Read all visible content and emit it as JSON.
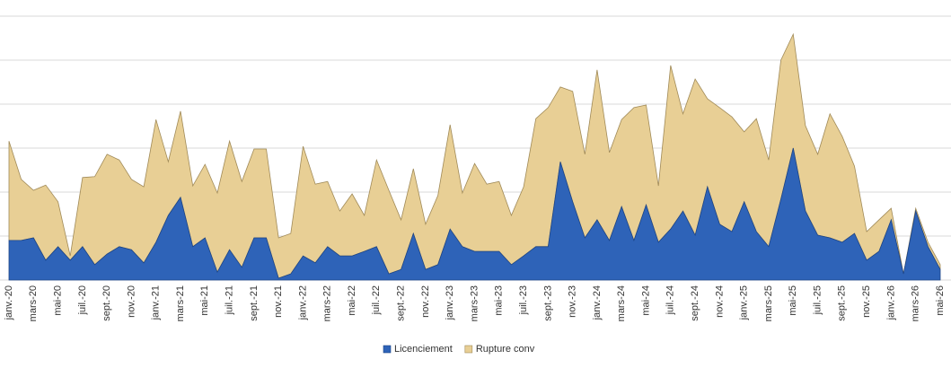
{
  "chart_data": {
    "type": "area_stacked",
    "categories": [
      "janv.-20",
      null,
      "mars-20",
      null,
      "mai-20",
      null,
      "juil.-20",
      null,
      "sept.-20",
      null,
      "nov.-20",
      null,
      "janv.-21",
      null,
      "mars-21",
      null,
      "mai-21",
      null,
      "juil.-21",
      null,
      "sept.-21",
      null,
      "nov.-21",
      null,
      "janv.-22",
      null,
      "mars-22",
      null,
      "mai-22",
      null,
      "juil.-22",
      null,
      "sept.-22",
      null,
      "nov.-22",
      null,
      "janv.-23",
      null,
      "mars-23",
      null,
      "mai-23",
      null,
      "juil.-23",
      null,
      "sept.-23",
      null,
      "nov.-23",
      null,
      "janv.-24",
      null,
      "mars-24",
      null,
      "mai-24",
      null,
      "juil.-24",
      null,
      "sept.-24",
      null,
      "nov.-24",
      null,
      "janv.-25",
      null,
      "mars-25",
      null,
      "mai-25",
      null,
      "juil.-25",
      null,
      "sept.-25",
      null,
      "nov.-25",
      null,
      "janv.-26",
      null,
      "mars-26",
      null,
      "mai-26"
    ],
    "series": [
      {
        "name": "Licenciement",
        "color": "#2e63b8",
        "values": [
          9.0,
          9.0,
          9.6,
          4.5,
          7.6,
          4.5,
          7.6,
          3.5,
          5.9,
          7.6,
          6.9,
          3.9,
          8.6,
          14.7,
          18.8,
          7.6,
          9.6,
          1.8,
          6.9,
          2.9,
          9.6,
          9.6,
          0.4,
          1.4,
          5.5,
          3.9,
          7.6,
          5.5,
          5.5,
          6.5,
          7.6,
          1.4,
          2.4,
          10.6,
          2.4,
          3.5,
          11.6,
          7.6,
          6.5,
          6.5,
          6.5,
          3.5,
          5.5,
          7.6,
          7.6,
          26.9,
          17.8,
          9.6,
          13.7,
          9.0,
          16.7,
          9.0,
          17.1,
          8.6,
          11.6,
          15.7,
          10.2,
          21.2,
          12.7,
          11.0,
          17.8,
          11.0,
          7.6,
          18.4,
          30.0,
          15.7,
          10.2,
          9.6,
          8.6,
          10.6,
          4.5,
          6.5,
          13.7,
          1.4,
          15.7,
          7.6,
          2.4
        ]
      },
      {
        "name": "Rupture conv",
        "color": "#e8cf95",
        "values": [
          22.6,
          13.9,
          10.8,
          17.1,
          10.2,
          1.0,
          15.7,
          20.0,
          22.7,
          19.7,
          16.0,
          17.3,
          27.9,
          12.2,
          19.6,
          13.8,
          16.7,
          18.0,
          24.7,
          19.5,
          20.2,
          20.2,
          9.2,
          9.2,
          24.9,
          17.9,
          14.8,
          10.2,
          14.1,
          8.2,
          19.7,
          19.0,
          11.3,
          14.7,
          10.3,
          15.7,
          23.7,
          12.2,
          20.0,
          15.3,
          15.9,
          11.2,
          15.7,
          29.1,
          31.6,
          17.0,
          25.1,
          19.0,
          34.1,
          20.0,
          19.8,
          30.2,
          22.7,
          12.8,
          37.2,
          22.1,
          35.5,
          20.0,
          26.5,
          26.1,
          15.9,
          25.7,
          19.7,
          31.6,
          25.9,
          19.4,
          18.4,
          28.2,
          24.1,
          15.3,
          6.5,
          7.2,
          2.6,
          0.0,
          0.6,
          1.0,
          1.1
        ]
      }
    ],
    "ylim": [
      0,
      60
    ],
    "yticks": [
      0,
      10,
      20,
      30,
      40,
      50,
      60
    ],
    "grid": true,
    "legend": "bottom"
  }
}
